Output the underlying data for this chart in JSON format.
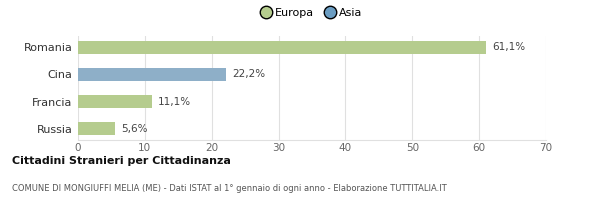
{
  "categories": [
    "Romania",
    "Cina",
    "Francia",
    "Russia"
  ],
  "values": [
    61.1,
    22.2,
    11.1,
    5.6
  ],
  "labels": [
    "61,1%",
    "22,2%",
    "11,1%",
    "5,6%"
  ],
  "bar_colors": [
    "#b5cc8e",
    "#8eafc8",
    "#b5cc8e",
    "#b5cc8e"
  ],
  "legend_labels": [
    "Europa",
    "Asia"
  ],
  "legend_colors": [
    "#b5cc8e",
    "#6b9dc2"
  ],
  "xlim": [
    0,
    70
  ],
  "xticks": [
    0,
    10,
    20,
    30,
    40,
    50,
    60,
    70
  ],
  "title_bold": "Cittadini Stranieri per Cittadinanza",
  "subtitle": "COMUNE DI MONGIUFFI MELIA (ME) - Dati ISTAT al 1° gennaio di ogni anno - Elaborazione TUTTITALIA.IT",
  "bg_color": "#ffffff",
  "grid_color": "#e0e0e0",
  "bar_height": 0.5
}
